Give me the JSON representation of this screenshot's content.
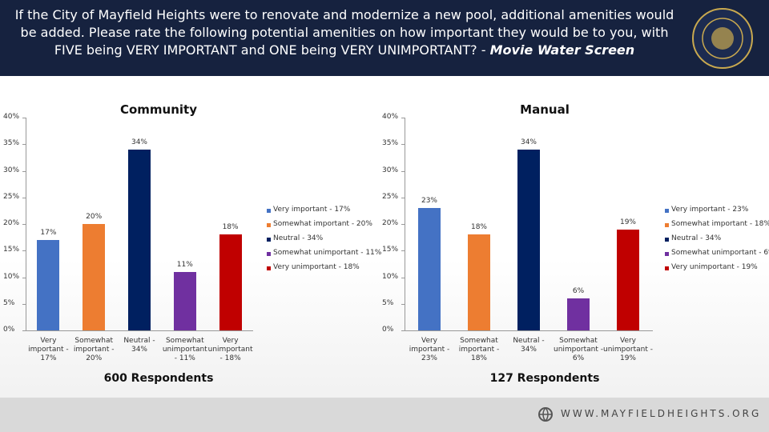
{
  "header": {
    "question": "If the City of Mayfield Heights were to renovate and modernize a new pool, additional amenities would be added. Please rate the following potential amenities on how important they would be to you, with FIVE being VERY IMPORTANT and ONE being VERY UNIMPORTANT? - ",
    "topic": "Movie Water Screen"
  },
  "footer": {
    "website": "WWW.MAYFIELDHEIGHTS.ORG"
  },
  "chart_data": [
    {
      "type": "bar",
      "title": "Community",
      "note": "600 Respondents",
      "categories": [
        "Very important - 17%",
        "Somewhat important - 20%",
        "Neutral - 34%",
        "Somewhat unimportant - 11%",
        "Very unimportant - 18%"
      ],
      "values": [
        17,
        20,
        34,
        11,
        18
      ],
      "value_labels": [
        "17%",
        "20%",
        "34%",
        "11%",
        "18%"
      ],
      "colors": [
        "#4472c4",
        "#ed7d31",
        "#002060",
        "#7030a0",
        "#c00000"
      ],
      "ylim": [
        0,
        40
      ],
      "yticks": [
        {
          "value": 0,
          "label": "0%"
        },
        {
          "value": 5,
          "label": "5%"
        },
        {
          "value": 10,
          "label": "10%"
        },
        {
          "value": 15,
          "label": "15%"
        },
        {
          "value": 20,
          "label": "20%"
        },
        {
          "value": 25,
          "label": "25%"
        },
        {
          "value": 30,
          "label": "30%"
        },
        {
          "value": 35,
          "label": "35%"
        },
        {
          "value": 40,
          "label": "40%"
        }
      ],
      "grid": false,
      "legend": "right"
    },
    {
      "type": "bar",
      "title": "Manual",
      "note": "127 Respondents",
      "categories": [
        "Very important - 23%",
        "Somewhat important - 18%",
        "Neutral - 34%",
        "Somewhat unimportant - 6%",
        "Very unimportant - 19%"
      ],
      "values": [
        23,
        18,
        34,
        6,
        19
      ],
      "value_labels": [
        "23%",
        "18%",
        "34%",
        "6%",
        "19%"
      ],
      "colors": [
        "#4472c4",
        "#ed7d31",
        "#002060",
        "#7030a0",
        "#c00000"
      ],
      "ylim": [
        0,
        40
      ],
      "yticks": [
        {
          "value": 0,
          "label": "0%"
        },
        {
          "value": 5,
          "label": "5%"
        },
        {
          "value": 10,
          "label": "10%"
        },
        {
          "value": 15,
          "label": "15%"
        },
        {
          "value": 20,
          "label": "20%"
        },
        {
          "value": 25,
          "label": "25%"
        },
        {
          "value": 30,
          "label": "30%"
        },
        {
          "value": 35,
          "label": "35%"
        },
        {
          "value": 40,
          "label": "40%"
        }
      ],
      "grid": false,
      "legend": "right"
    }
  ]
}
